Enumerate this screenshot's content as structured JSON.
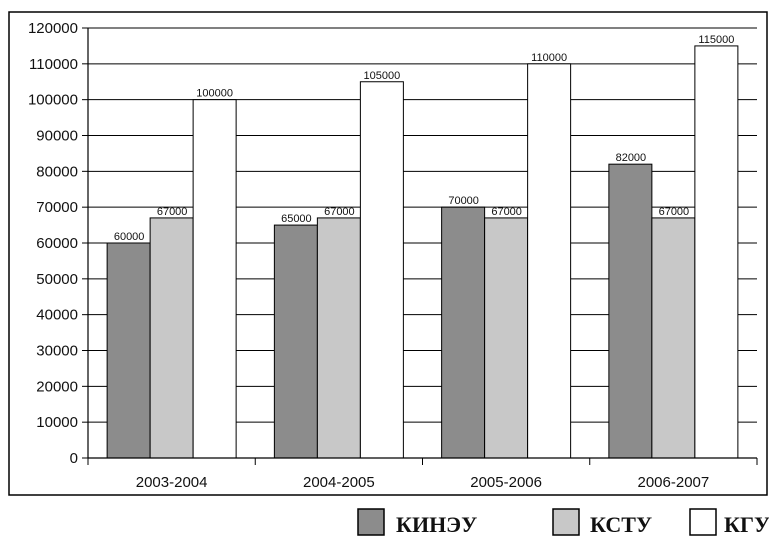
{
  "chart_data": {
    "type": "bar",
    "title": "",
    "xlabel": "",
    "ylabel": "",
    "categories": [
      "2003-2004",
      "2004-2005",
      "2005-2006",
      "2006-2007"
    ],
    "series": [
      {
        "name": "КИНЭУ",
        "values": [
          60000,
          65000,
          70000,
          82000
        ],
        "color": "#8c8c8c"
      },
      {
        "name": "КСТУ",
        "values": [
          67000,
          67000,
          67000,
          67000
        ],
        "color": "#c8c8c8"
      },
      {
        "name": "КГУ",
        "values": [
          100000,
          105000,
          110000,
          115000
        ],
        "color": "#ffffff"
      }
    ],
    "ylim": [
      0,
      120000
    ],
    "yticks": [
      0,
      10000,
      20000,
      30000,
      40000,
      50000,
      60000,
      70000,
      80000,
      90000,
      100000,
      110000,
      120000
    ],
    "grid": true,
    "legend_position": "bottom-right",
    "data_labels": true
  }
}
